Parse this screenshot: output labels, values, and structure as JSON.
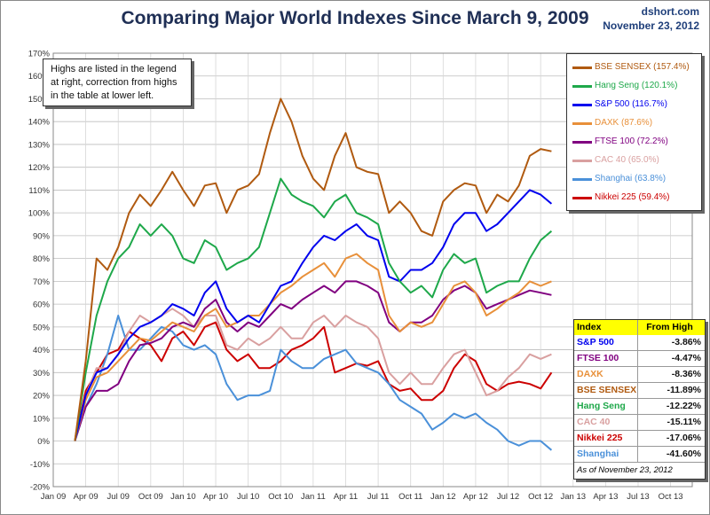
{
  "header": {
    "title": "Comparing Major World Indexes Since March 9, 2009",
    "source": "dshort.com",
    "date": "November 23, 2012"
  },
  "note": "Highs are listed in the legend at right, correction from highs in the table at lower left.",
  "legend": [
    {
      "label": "BSE SENSEX (157.4%)",
      "color": "#b05a10"
    },
    {
      "label": "Hang Seng (120.1%)",
      "color": "#1ea84a"
    },
    {
      "label": "S&P 500 (116.7%)",
      "color": "#0000ee"
    },
    {
      "label": "DAXK (87.6%)",
      "color": "#e8903a"
    },
    {
      "label": "FTSE 100 (72.2%)",
      "color": "#800080"
    },
    {
      "label": "CAC 40 (65.0%)",
      "color": "#d9a0a0"
    },
    {
      "label": "Shanghai (63.8%)",
      "color": "#4a90d9"
    },
    {
      "label": "Nikkei 225 (59.4%)",
      "color": "#cc0000"
    }
  ],
  "table": {
    "head": [
      "Index",
      "From High"
    ],
    "rows": [
      {
        "name": "S&P 500",
        "value": "-3.86%",
        "color": "#0000ee"
      },
      {
        "name": "FTSE 100",
        "value": "-4.47%",
        "color": "#800080"
      },
      {
        "name": "DAXK",
        "value": "-8.36%",
        "color": "#e8903a"
      },
      {
        "name": "BSE SENSEX",
        "value": "-11.89%",
        "color": "#b05a10"
      },
      {
        "name": "Hang Seng",
        "value": "-12.22%",
        "color": "#1ea84a"
      },
      {
        "name": "CAC 40",
        "value": "-15.11%",
        "color": "#d9a0a0"
      },
      {
        "name": "Nikkei 225",
        "value": "-17.06%",
        "color": "#cc0000"
      },
      {
        "name": "Shanghai",
        "value": "-41.60%",
        "color": "#4a90d9"
      }
    ],
    "as_of": "As of November 23, 2012"
  },
  "chart_data": {
    "type": "line",
    "title": "Comparing Major World Indexes Since March 9, 2009",
    "xlabel": "",
    "ylabel": "",
    "ylim": [
      -20,
      170
    ],
    "xlim": [
      "2009-01",
      "2013-12"
    ],
    "y_ticks": [
      "-20%",
      "-10%",
      "0%",
      "10%",
      "20%",
      "30%",
      "40%",
      "50%",
      "60%",
      "70%",
      "80%",
      "90%",
      "100%",
      "110%",
      "120%",
      "130%",
      "140%",
      "150%",
      "160%",
      "170%"
    ],
    "x_ticks": [
      "Jan 09",
      "Apr 09",
      "Jul 09",
      "Oct 09",
      "Jan 10",
      "Apr 10",
      "Jul 10",
      "Oct 10",
      "Jan 11",
      "Apr 11",
      "Jul 11",
      "Oct 11",
      "Jan 12",
      "Apr 12",
      "Jul 12",
      "Oct 12",
      "Jan 13",
      "Apr 13",
      "Jul 13",
      "Oct 13"
    ],
    "grid": true,
    "legend_position": "top-right",
    "series": [
      {
        "name": "BSE SENSEX (157.4%)",
        "color": "#b05a10",
        "x": [
          "2009-03",
          "2009-04",
          "2009-05",
          "2009-06",
          "2009-07",
          "2009-08",
          "2009-09",
          "2009-10",
          "2009-11",
          "2009-12",
          "2010-01",
          "2010-02",
          "2010-03",
          "2010-04",
          "2010-05",
          "2010-06",
          "2010-07",
          "2010-08",
          "2010-09",
          "2010-10",
          "2010-11",
          "2010-12",
          "2011-01",
          "2011-02",
          "2011-03",
          "2011-04",
          "2011-05",
          "2011-06",
          "2011-07",
          "2011-08",
          "2011-09",
          "2011-10",
          "2011-11",
          "2011-12",
          "2012-01",
          "2012-02",
          "2012-03",
          "2012-04",
          "2012-05",
          "2012-06",
          "2012-07",
          "2012-08",
          "2012-09",
          "2012-10",
          "2012-11"
        ],
        "y": [
          0,
          35,
          80,
          75,
          85,
          100,
          108,
          103,
          110,
          118,
          110,
          103,
          112,
          113,
          100,
          110,
          112,
          117,
          135,
          150,
          140,
          125,
          115,
          110,
          125,
          135,
          120,
          118,
          117,
          100,
          105,
          100,
          92,
          90,
          105,
          110,
          113,
          112,
          100,
          108,
          105,
          112,
          125,
          128,
          127
        ]
      },
      {
        "name": "Hang Seng (120.1%)",
        "color": "#1ea84a",
        "x": [
          "2009-03",
          "2009-04",
          "2009-05",
          "2009-06",
          "2009-07",
          "2009-08",
          "2009-09",
          "2009-10",
          "2009-11",
          "2009-12",
          "2010-01",
          "2010-02",
          "2010-03",
          "2010-04",
          "2010-05",
          "2010-06",
          "2010-07",
          "2010-08",
          "2010-09",
          "2010-10",
          "2010-11",
          "2010-12",
          "2011-01",
          "2011-02",
          "2011-03",
          "2011-04",
          "2011-05",
          "2011-06",
          "2011-07",
          "2011-08",
          "2011-09",
          "2011-10",
          "2011-11",
          "2011-12",
          "2012-01",
          "2012-02",
          "2012-03",
          "2012-04",
          "2012-05",
          "2012-06",
          "2012-07",
          "2012-08",
          "2012-09",
          "2012-10",
          "2012-11"
        ],
        "y": [
          0,
          30,
          55,
          70,
          80,
          85,
          95,
          90,
          95,
          90,
          80,
          78,
          88,
          85,
          75,
          78,
          80,
          85,
          100,
          115,
          108,
          105,
          103,
          98,
          105,
          108,
          100,
          98,
          95,
          78,
          70,
          65,
          68,
          63,
          75,
          82,
          78,
          80,
          65,
          68,
          70,
          70,
          80,
          88,
          92
        ]
      },
      {
        "name": "S&P 500 (116.7%)",
        "color": "#0000ee",
        "x": [
          "2009-03",
          "2009-04",
          "2009-05",
          "2009-06",
          "2009-07",
          "2009-08",
          "2009-09",
          "2009-10",
          "2009-11",
          "2009-12",
          "2010-01",
          "2010-02",
          "2010-03",
          "2010-04",
          "2010-05",
          "2010-06",
          "2010-07",
          "2010-08",
          "2010-09",
          "2010-10",
          "2010-11",
          "2010-12",
          "2011-01",
          "2011-02",
          "2011-03",
          "2011-04",
          "2011-05",
          "2011-06",
          "2011-07",
          "2011-08",
          "2011-09",
          "2011-10",
          "2011-11",
          "2011-12",
          "2012-01",
          "2012-02",
          "2012-03",
          "2012-04",
          "2012-05",
          "2012-06",
          "2012-07",
          "2012-08",
          "2012-09",
          "2012-10",
          "2012-11"
        ],
        "y": [
          0,
          20,
          30,
          32,
          38,
          45,
          50,
          52,
          55,
          60,
          58,
          55,
          65,
          70,
          58,
          52,
          55,
          52,
          60,
          68,
          70,
          78,
          85,
          90,
          88,
          92,
          95,
          90,
          88,
          72,
          70,
          75,
          75,
          78,
          85,
          95,
          100,
          100,
          92,
          95,
          100,
          105,
          110,
          108,
          104
        ]
      },
      {
        "name": "DAXK (87.6%)",
        "color": "#e8903a",
        "x": [
          "2009-03",
          "2009-04",
          "2009-05",
          "2009-06",
          "2009-07",
          "2009-08",
          "2009-09",
          "2009-10",
          "2009-11",
          "2009-12",
          "2010-01",
          "2010-02",
          "2010-03",
          "2010-04",
          "2010-05",
          "2010-06",
          "2010-07",
          "2010-08",
          "2010-09",
          "2010-10",
          "2010-11",
          "2010-12",
          "2011-01",
          "2011-02",
          "2011-03",
          "2011-04",
          "2011-05",
          "2011-06",
          "2011-07",
          "2011-08",
          "2011-09",
          "2011-10",
          "2011-11",
          "2011-12",
          "2012-01",
          "2012-02",
          "2012-03",
          "2012-04",
          "2012-05",
          "2012-06",
          "2012-07",
          "2012-08",
          "2012-09",
          "2012-10",
          "2012-11"
        ],
        "y": [
          0,
          18,
          28,
          30,
          35,
          40,
          45,
          44,
          48,
          52,
          50,
          48,
          55,
          58,
          50,
          52,
          55,
          55,
          60,
          65,
          68,
          72,
          75,
          78,
          72,
          80,
          82,
          78,
          75,
          55,
          48,
          52,
          50,
          52,
          60,
          68,
          70,
          65,
          55,
          58,
          62,
          65,
          70,
          68,
          70
        ]
      },
      {
        "name": "FTSE 100 (72.2%)",
        "color": "#800080",
        "x": [
          "2009-03",
          "2009-04",
          "2009-05",
          "2009-06",
          "2009-07",
          "2009-08",
          "2009-09",
          "2009-10",
          "2009-11",
          "2009-12",
          "2010-01",
          "2010-02",
          "2010-03",
          "2010-04",
          "2010-05",
          "2010-06",
          "2010-07",
          "2010-08",
          "2010-09",
          "2010-10",
          "2010-11",
          "2010-12",
          "2011-01",
          "2011-02",
          "2011-03",
          "2011-04",
          "2011-05",
          "2011-06",
          "2011-07",
          "2011-08",
          "2011-09",
          "2011-10",
          "2011-11",
          "2011-12",
          "2012-01",
          "2012-02",
          "2012-03",
          "2012-04",
          "2012-05",
          "2012-06",
          "2012-07",
          "2012-08",
          "2012-09",
          "2012-10",
          "2012-11"
        ],
        "y": [
          0,
          15,
          22,
          22,
          25,
          35,
          42,
          43,
          45,
          50,
          52,
          50,
          58,
          62,
          52,
          48,
          52,
          50,
          55,
          60,
          58,
          62,
          65,
          68,
          65,
          70,
          70,
          68,
          65,
          52,
          48,
          52,
          52,
          55,
          62,
          66,
          68,
          65,
          58,
          60,
          62,
          64,
          66,
          65,
          64
        ]
      },
      {
        "name": "CAC 40 (65.0%)",
        "color": "#d9a0a0",
        "x": [
          "2009-03",
          "2009-04",
          "2009-05",
          "2009-06",
          "2009-07",
          "2009-08",
          "2009-09",
          "2009-10",
          "2009-11",
          "2009-12",
          "2010-01",
          "2010-02",
          "2010-03",
          "2010-04",
          "2010-05",
          "2010-06",
          "2010-07",
          "2010-08",
          "2010-09",
          "2010-10",
          "2010-11",
          "2010-12",
          "2011-01",
          "2011-02",
          "2011-03",
          "2011-04",
          "2011-05",
          "2011-06",
          "2011-07",
          "2011-08",
          "2011-09",
          "2011-10",
          "2011-11",
          "2011-12",
          "2012-01",
          "2012-02",
          "2012-03",
          "2012-04",
          "2012-05",
          "2012-06",
          "2012-07",
          "2012-08",
          "2012-09",
          "2012-10",
          "2012-11"
        ],
        "y": [
          0,
          20,
          32,
          32,
          38,
          48,
          55,
          52,
          55,
          58,
          55,
          50,
          55,
          55,
          42,
          40,
          45,
          42,
          45,
          50,
          45,
          45,
          52,
          55,
          50,
          55,
          52,
          50,
          45,
          30,
          25,
          30,
          25,
          25,
          32,
          38,
          40,
          30,
          20,
          22,
          28,
          32,
          38,
          36,
          38
        ]
      },
      {
        "name": "Shanghai (63.8%)",
        "color": "#4a90d9",
        "x": [
          "2009-03",
          "2009-04",
          "2009-05",
          "2009-06",
          "2009-07",
          "2009-08",
          "2009-09",
          "2009-10",
          "2009-11",
          "2009-12",
          "2010-01",
          "2010-02",
          "2010-03",
          "2010-04",
          "2010-05",
          "2010-06",
          "2010-07",
          "2010-08",
          "2010-09",
          "2010-10",
          "2010-11",
          "2010-12",
          "2011-01",
          "2011-02",
          "2011-03",
          "2011-04",
          "2011-05",
          "2011-06",
          "2011-07",
          "2011-08",
          "2011-09",
          "2011-10",
          "2011-11",
          "2011-12",
          "2012-01",
          "2012-02",
          "2012-03",
          "2012-04",
          "2012-05",
          "2012-06",
          "2012-07",
          "2012-08",
          "2012-09",
          "2012-10",
          "2012-11"
        ],
        "y": [
          0,
          15,
          25,
          38,
          55,
          40,
          40,
          45,
          50,
          48,
          42,
          40,
          42,
          38,
          25,
          18,
          20,
          20,
          22,
          40,
          35,
          32,
          32,
          36,
          38,
          40,
          34,
          32,
          30,
          25,
          18,
          15,
          12,
          5,
          8,
          12,
          10,
          12,
          8,
          5,
          0,
          -2,
          0,
          0,
          -4
        ]
      },
      {
        "name": "Nikkei 225 (59.4%)",
        "color": "#cc0000",
        "x": [
          "2009-03",
          "2009-04",
          "2009-05",
          "2009-06",
          "2009-07",
          "2009-08",
          "2009-09",
          "2009-10",
          "2009-11",
          "2009-12",
          "2010-01",
          "2010-02",
          "2010-03",
          "2010-04",
          "2010-05",
          "2010-06",
          "2010-07",
          "2010-08",
          "2010-09",
          "2010-10",
          "2010-11",
          "2010-12",
          "2011-01",
          "2011-02",
          "2011-03",
          "2011-04",
          "2011-05",
          "2011-06",
          "2011-07",
          "2011-08",
          "2011-09",
          "2011-10",
          "2011-11",
          "2011-12",
          "2012-01",
          "2012-02",
          "2012-03",
          "2012-04",
          "2012-05",
          "2012-06",
          "2012-07",
          "2012-08",
          "2012-09",
          "2012-10",
          "2012-11"
        ],
        "y": [
          0,
          22,
          30,
          38,
          40,
          48,
          45,
          42,
          35,
          45,
          48,
          42,
          50,
          52,
          40,
          35,
          38,
          32,
          32,
          35,
          40,
          42,
          45,
          50,
          30,
          32,
          34,
          33,
          35,
          25,
          22,
          23,
          18,
          18,
          22,
          32,
          38,
          35,
          25,
          22,
          25,
          26,
          25,
          23,
          30
        ]
      }
    ]
  }
}
